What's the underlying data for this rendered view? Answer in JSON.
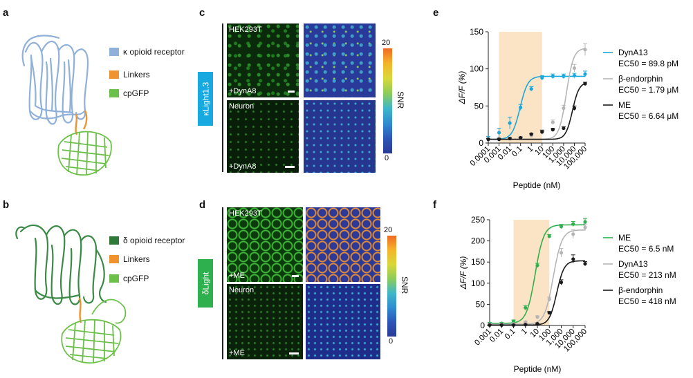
{
  "panels": {
    "a": {
      "label": "a",
      "legend": [
        {
          "text": "κ opioid receptor",
          "color": "#8fb0d8"
        },
        {
          "text": "Linkers",
          "color": "#f0922e"
        },
        {
          "text": "cpGFP",
          "color": "#6cc04a"
        }
      ]
    },
    "b": {
      "label": "b",
      "legend": [
        {
          "text": "δ opioid receptor",
          "color": "#2f7a3a"
        },
        {
          "text": "Linkers",
          "color": "#f0922e"
        },
        {
          "text": "cpGFP",
          "color": "#6cc04a"
        }
      ]
    },
    "c": {
      "label": "c",
      "sensor": "κLight1.3",
      "sensor_color": "#17a9df",
      "top_label": "HEK293T",
      "top_treatment": "+DynA8",
      "bottom_label": "Neuron",
      "bottom_treatment": "+DynA8",
      "colorbar_max": "20",
      "colorbar_min": "0",
      "colorbar_title": "SNR"
    },
    "d": {
      "label": "d",
      "sensor": "δLight",
      "sensor_color": "#2fb04e",
      "top_label": "HEK293T",
      "top_treatment": "+ME",
      "bottom_label": "Neuron",
      "bottom_treatment": "+ME",
      "colorbar_max": "20",
      "colorbar_min": "0",
      "colorbar_title": "SNR"
    },
    "e": {
      "label": "e"
    },
    "f": {
      "label": "f"
    }
  },
  "chart_data": [
    {
      "type": "scatter",
      "panel": "e",
      "ylabel": "ΔF/F (%)",
      "xlabel": "Peptide (nM)",
      "xscale": "log",
      "xlim": [
        0.0001,
        100000
      ],
      "ylim": [
        0,
        150
      ],
      "yticks": [
        0,
        50,
        100,
        150
      ],
      "xticks": [
        "0.0001",
        "0.001",
        "0.01",
        "0.1",
        "1",
        "10",
        "100",
        "1,000",
        "10,000",
        "100,000"
      ],
      "shaded_range": [
        0.001,
        10
      ],
      "series": [
        {
          "name": "DynA13",
          "ec50_text": "EC50 = 89.8 pM",
          "color": "#1aa7dc",
          "x": [
            0.0001,
            0.001,
            0.01,
            0.1,
            1,
            10,
            100,
            1000,
            10000,
            100000
          ],
          "y": [
            6,
            14,
            27,
            48,
            73,
            88,
            90,
            90,
            91,
            93
          ],
          "err": [
            3,
            6,
            8,
            4,
            3,
            3,
            3,
            3,
            3,
            4
          ]
        },
        {
          "name": "β-endorphin",
          "ec50_text": "EC50 = 1.79 μM",
          "color": "#b5b5b5",
          "x": [
            0.0001,
            0.001,
            0.01,
            0.1,
            1,
            10,
            100,
            1000,
            10000,
            100000
          ],
          "y": [
            5,
            6,
            6,
            7,
            10,
            15,
            28,
            47,
            101,
            126
          ],
          "err": [
            2,
            2,
            2,
            2,
            2,
            3,
            3,
            4,
            5,
            8
          ]
        },
        {
          "name": "ME",
          "ec50_text": "EC50 = 6.64 μM",
          "color": "#1a1a1a",
          "x": [
            0.0001,
            0.001,
            0.01,
            0.1,
            1,
            10,
            100,
            1000,
            10000,
            100000
          ],
          "y": [
            5,
            5,
            6,
            7,
            12,
            15,
            18,
            20,
            47,
            80
          ],
          "err": [
            1,
            1,
            1,
            1,
            1,
            2,
            2,
            2,
            3,
            2
          ]
        }
      ]
    },
    {
      "type": "scatter",
      "panel": "f",
      "ylabel": "ΔF/F (%)",
      "xlabel": "Peptide (nM)",
      "xscale": "log",
      "xlim": [
        0.001,
        100000
      ],
      "ylim": [
        0,
        250
      ],
      "yticks": [
        0,
        50,
        100,
        150,
        200,
        250
      ],
      "xticks": [
        "0.001",
        "0.01",
        "0.1",
        "1",
        "10",
        "100",
        "1,000",
        "10,000",
        "100,000"
      ],
      "shaded_range": [
        0.1,
        100
      ],
      "series": [
        {
          "name": "ME",
          "ec50_text": "EC50 = 6.5 nM",
          "color": "#2fb04e",
          "x": [
            0.001,
            0.01,
            0.1,
            1,
            10,
            100,
            1000,
            10000,
            100000
          ],
          "y": [
            5,
            5,
            10,
            42,
            142,
            211,
            234,
            240,
            245
          ],
          "err": [
            2,
            2,
            3,
            5,
            5,
            4,
            5,
            6,
            8
          ]
        },
        {
          "name": "DynA13",
          "ec50_text": "EC50 = 213 nM",
          "color": "#b5b5b5",
          "x": [
            0.001,
            0.01,
            0.1,
            1,
            10,
            100,
            1000,
            10000,
            100000
          ],
          "y": [
            3,
            3,
            4,
            8,
            20,
            62,
            172,
            216,
            232
          ],
          "err": [
            1,
            1,
            1,
            2,
            3,
            5,
            10,
            10,
            8
          ]
        },
        {
          "name": "β-endorphin",
          "ec50_text": "EC50 = 418 nM",
          "color": "#1a1a1a",
          "x": [
            0.001,
            0.01,
            0.1,
            1,
            10,
            100,
            1000,
            10000,
            100000
          ],
          "y": [
            1,
            1,
            1,
            2,
            4,
            30,
            102,
            157,
            146
          ],
          "err": [
            1,
            1,
            1,
            1,
            1,
            3,
            6,
            10,
            5
          ]
        }
      ]
    }
  ]
}
